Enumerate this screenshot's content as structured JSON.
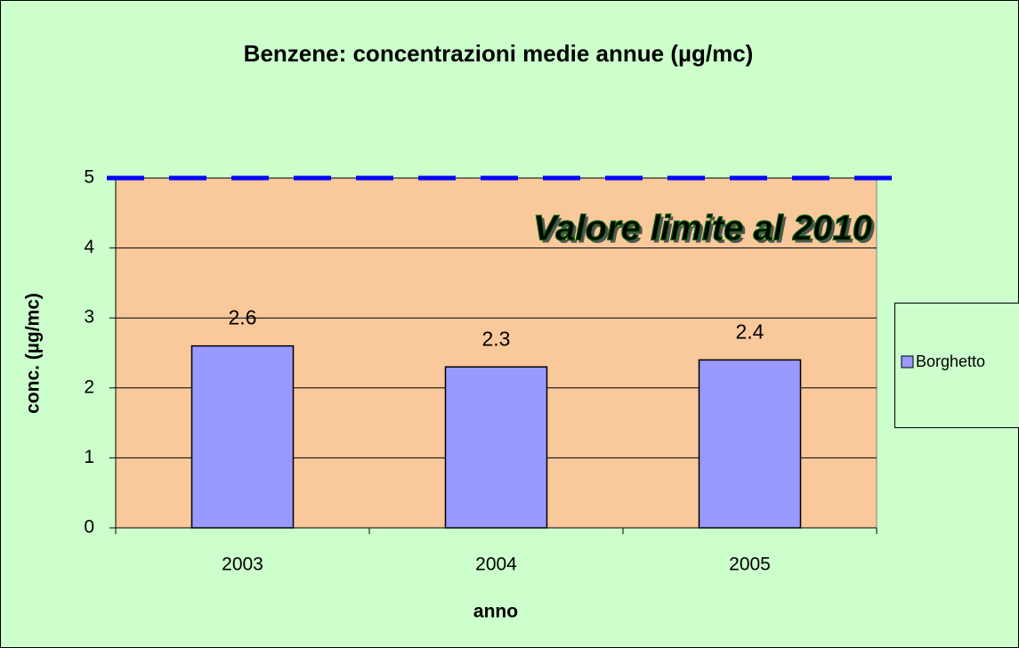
{
  "chart_data": {
    "type": "bar",
    "title": "Benzene: concentrazioni medie annue (µg/mc)",
    "x_label": "anno",
    "y_label": "conc. (µg/mc)",
    "categories": [
      "2003",
      "2004",
      "2005"
    ],
    "series": [
      {
        "name": "Borghetto",
        "color": "#9999ff",
        "values": [
          2.6,
          2.3,
          2.4
        ]
      }
    ],
    "ylim": [
      0,
      5
    ],
    "yticks": [
      0,
      1,
      2,
      3,
      4,
      5
    ],
    "grid": true,
    "reference_line": {
      "value": 5,
      "color": "#0000ff",
      "label": "Valore limite al 2010"
    },
    "legend": "right"
  }
}
